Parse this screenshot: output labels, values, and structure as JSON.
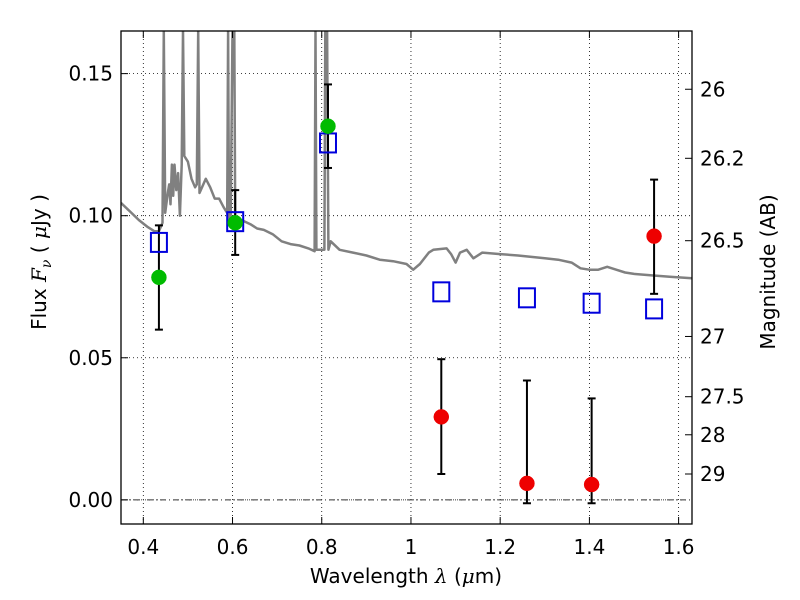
{
  "chart_data": {
    "type": "scatter",
    "xlabel": "Wavelength  λ (μm)",
    "ylabel": "Flux  F_ν ( μJy )",
    "ylabel_right": "Magnitude (AB)",
    "xlim": [
      0.35,
      1.63
    ],
    "ylim": [
      -0.0085,
      0.165
    ],
    "grid": true,
    "x_ticks": [
      0.4,
      0.6,
      0.8,
      1.0,
      1.2,
      1.4,
      1.6
    ],
    "x_tick_labels": [
      "0.4",
      "0.6",
      "0.8",
      "1",
      "1.2",
      "1.4",
      "1.6"
    ],
    "y_ticks": [
      0.0,
      0.05,
      0.1,
      0.15
    ],
    "y_tick_labels": [
      "0.00",
      "0.05",
      "0.10",
      "0.15"
    ],
    "right_ticks": [
      {
        "label": "26",
        "flux": 0.1445
      },
      {
        "label": "26.2",
        "flux": 0.1202
      },
      {
        "label": "26.5",
        "flux": 0.0912
      },
      {
        "label": "27",
        "flux": 0.0575
      },
      {
        "label": "27.5",
        "flux": 0.0363
      },
      {
        "label": "28",
        "flux": 0.0229
      },
      {
        "label": "29",
        "flux": 0.0091
      }
    ],
    "series": [
      {
        "kind": "detections",
        "color": "#00bb00",
        "points": [
          {
            "x": 0.435,
            "y": 0.0783
          },
          {
            "x": 0.606,
            "y": 0.0975
          },
          {
            "x": 0.814,
            "y": 0.1315
          }
        ]
      },
      {
        "kind": "upper-band",
        "color": "#ee0000",
        "points": [
          {
            "x": 1.068,
            "y": 0.0292
          },
          {
            "x": 1.26,
            "y": 0.0058
          },
          {
            "x": 1.405,
            "y": 0.0054
          },
          {
            "x": 1.545,
            "y": 0.0928
          }
        ]
      },
      {
        "kind": "model-photometry",
        "color": "#0000dd",
        "marker": "open-square",
        "points": [
          {
            "x": 0.435,
            "y": 0.0906
          },
          {
            "x": 0.606,
            "y": 0.0979
          },
          {
            "x": 0.814,
            "y": 0.1256
          },
          {
            "x": 1.068,
            "y": 0.0732
          },
          {
            "x": 1.26,
            "y": 0.0711
          },
          {
            "x": 1.405,
            "y": 0.0692
          },
          {
            "x": 1.545,
            "y": 0.0672
          }
        ]
      }
    ],
    "error_bars": [
      {
        "x": 0.435,
        "low": 0.0599,
        "high": 0.0966
      },
      {
        "x": 0.606,
        "low": 0.0862,
        "high": 0.109
      },
      {
        "x": 0.814,
        "low": 0.1168,
        "high": 0.1462
      },
      {
        "x": 1.068,
        "low": 0.0091,
        "high": 0.0495
      },
      {
        "x": 1.26,
        "low": -0.0012,
        "high": 0.042
      },
      {
        "x": 1.405,
        "low": -0.0012,
        "high": 0.0357
      },
      {
        "x": 1.545,
        "low": 0.0725,
        "high": 0.1127
      }
    ],
    "model_sed": {
      "color": "#808080",
      "points": [
        [
          0.35,
          0.1045
        ],
        [
          0.37,
          0.1015
        ],
        [
          0.39,
          0.0985
        ],
        [
          0.41,
          0.096
        ],
        [
          0.425,
          0.0945
        ],
        [
          0.435,
          0.0945
        ],
        [
          0.443,
          0.0975
        ],
        [
          0.446,
          0.165
        ],
        [
          0.449,
          0.101
        ],
        [
          0.455,
          0.108
        ],
        [
          0.458,
          0.111
        ],
        [
          0.461,
          0.104
        ],
        [
          0.464,
          0.118
        ],
        [
          0.467,
          0.107
        ],
        [
          0.47,
          0.118
        ],
        [
          0.474,
          0.109
        ],
        [
          0.478,
          0.115
        ],
        [
          0.482,
          0.1
        ],
        [
          0.486,
          0.118
        ],
        [
          0.489,
          0.165
        ],
        [
          0.492,
          0.121
        ],
        [
          0.5,
          0.119
        ],
        [
          0.508,
          0.113
        ],
        [
          0.516,
          0.11
        ],
        [
          0.52,
          0.111
        ],
        [
          0.523,
          0.165
        ],
        [
          0.526,
          0.108
        ],
        [
          0.54,
          0.113
        ],
        [
          0.55,
          0.11
        ],
        [
          0.56,
          0.106
        ],
        [
          0.57,
          0.106
        ],
        [
          0.58,
          0.103
        ],
        [
          0.588,
          0.101
        ],
        [
          0.59,
          0.165
        ],
        [
          0.592,
          0.099
        ],
        [
          0.596,
          0.1
        ],
        [
          0.6,
          0.165
        ],
        [
          0.604,
          0.165
        ],
        [
          0.606,
          0.099
        ],
        [
          0.62,
          0.0985
        ],
        [
          0.64,
          0.097
        ],
        [
          0.655,
          0.0955
        ],
        [
          0.67,
          0.095
        ],
        [
          0.69,
          0.0935
        ],
        [
          0.71,
          0.091
        ],
        [
          0.73,
          0.09
        ],
        [
          0.75,
          0.0895
        ],
        [
          0.77,
          0.0885
        ],
        [
          0.784,
          0.0875
        ],
        [
          0.786,
          0.165
        ],
        [
          0.788,
          0.088
        ],
        [
          0.8,
          0.088
        ],
        [
          0.806,
          0.088
        ],
        [
          0.808,
          0.165
        ],
        [
          0.812,
          0.165
        ],
        [
          0.815,
          0.088
        ],
        [
          0.82,
          0.091
        ],
        [
          0.84,
          0.088
        ],
        [
          0.87,
          0.087
        ],
        [
          0.9,
          0.086
        ],
        [
          0.93,
          0.0845
        ],
        [
          0.96,
          0.084
        ],
        [
          0.99,
          0.083
        ],
        [
          1.005,
          0.081
        ],
        [
          1.02,
          0.083
        ],
        [
          1.04,
          0.087
        ],
        [
          1.05,
          0.088
        ],
        [
          1.08,
          0.0885
        ],
        [
          1.09,
          0.0865
        ],
        [
          1.1,
          0.0835
        ],
        [
          1.11,
          0.087
        ],
        [
          1.125,
          0.088
        ],
        [
          1.14,
          0.085
        ],
        [
          1.16,
          0.087
        ],
        [
          1.2,
          0.0865
        ],
        [
          1.24,
          0.086
        ],
        [
          1.27,
          0.0855
        ],
        [
          1.3,
          0.085
        ],
        [
          1.33,
          0.0845
        ],
        [
          1.36,
          0.0835
        ],
        [
          1.38,
          0.0815
        ],
        [
          1.4,
          0.081
        ],
        [
          1.42,
          0.081
        ],
        [
          1.44,
          0.082
        ],
        [
          1.46,
          0.081
        ],
        [
          1.48,
          0.08
        ],
        [
          1.5,
          0.0795
        ],
        [
          1.54,
          0.079
        ],
        [
          1.58,
          0.0785
        ],
        [
          1.63,
          0.078
        ]
      ]
    }
  }
}
